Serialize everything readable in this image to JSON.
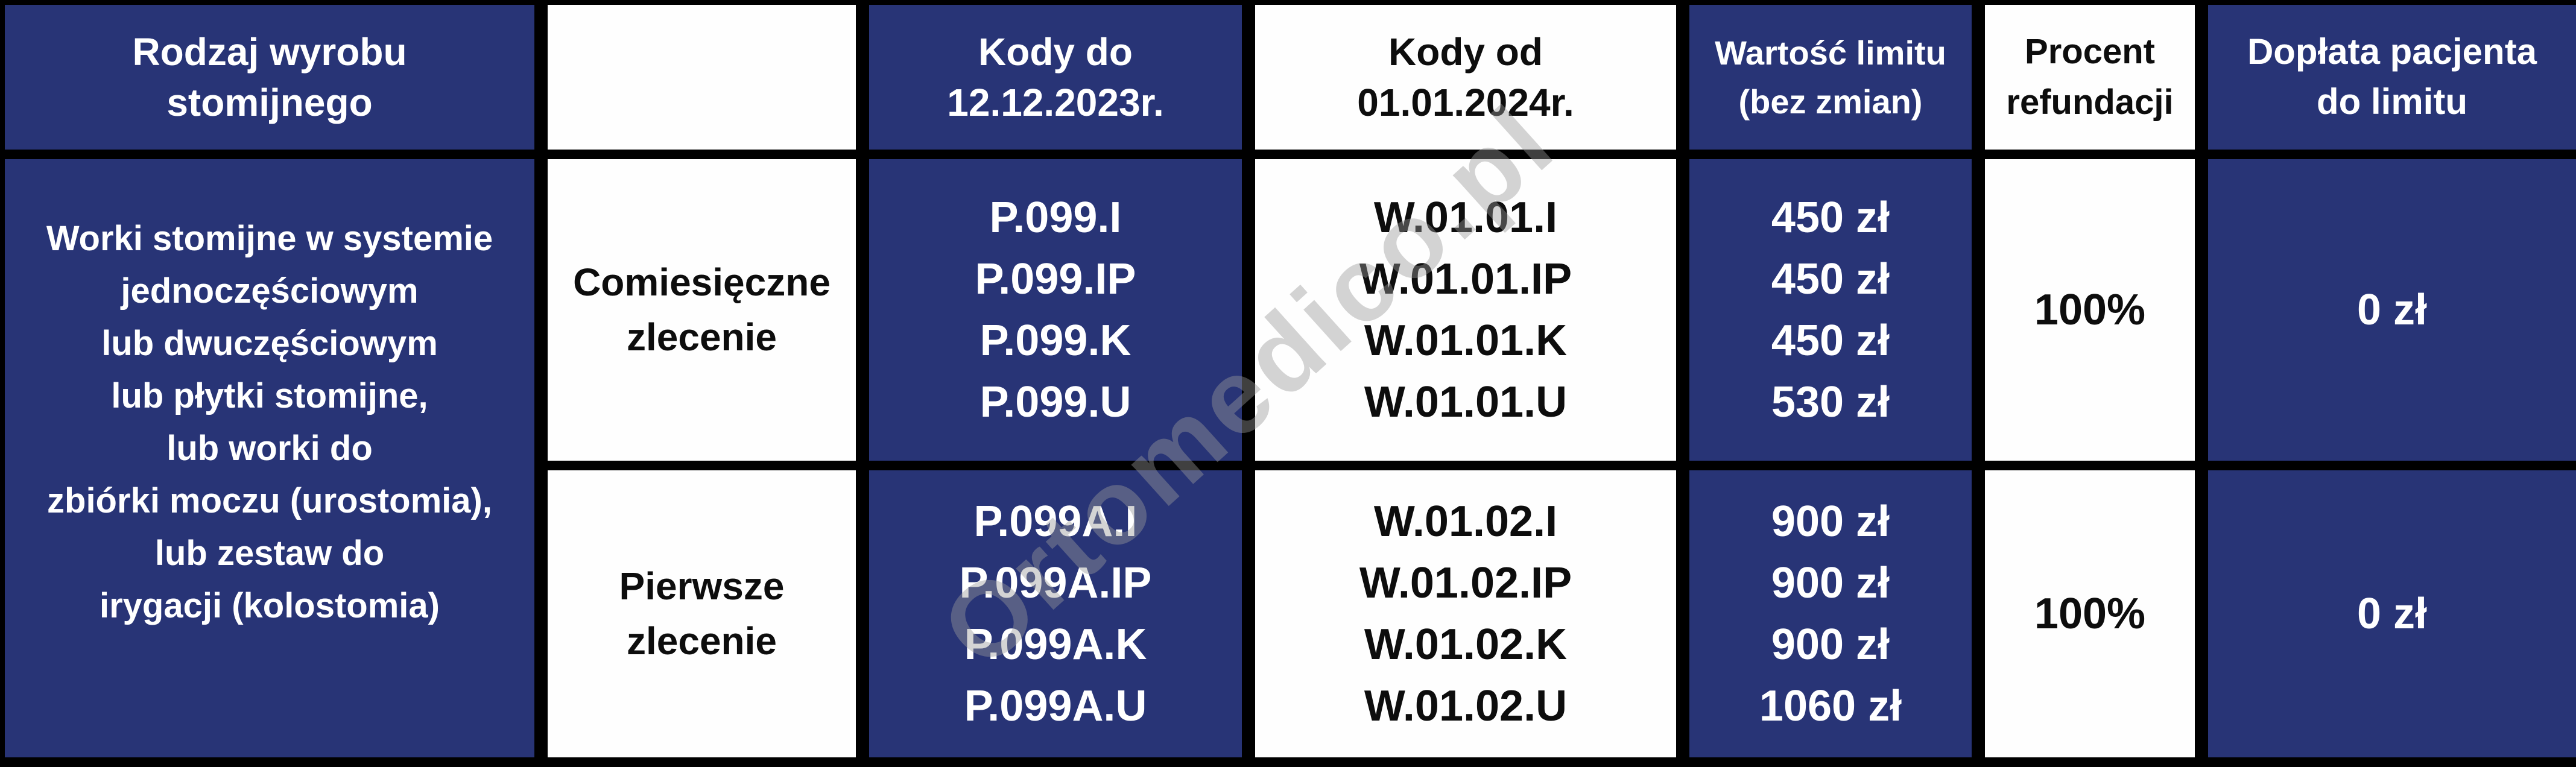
{
  "table": {
    "header": {
      "product_type": [
        "Rodzaj wyrobu",
        "stomijnego"
      ],
      "empty": "",
      "codes_until": [
        "Kody do",
        "12.12.2023r."
      ],
      "codes_from": [
        "Kody od",
        "01.01.2024r."
      ],
      "limit_value": [
        "Wartość limitu",
        "(bez zmian)"
      ],
      "refund_percent": [
        "Procent",
        "refundacji"
      ],
      "patient_copay": [
        "Dopłata pacjenta",
        "do limitu"
      ]
    },
    "product_category": [
      "Worki stomijne w systemie",
      "jednoczęściowym",
      "lub dwuczęściowym",
      "lub płytki stomijne,",
      "lub worki do",
      "zbiórki moczu (urostomia),",
      "lub zestaw do",
      "irygacji (kolostomia)"
    ],
    "rows": [
      {
        "order_type": [
          "Comiesięczne",
          "zlecenie"
        ],
        "codes_old": [
          "P.099.I",
          "P.099.IP",
          "P.099.K",
          "P.099.U"
        ],
        "codes_new": [
          "W.01.01.I",
          "W.01.01.IP",
          "W.01.01.K",
          "W.01.01.U"
        ],
        "limit_values": [
          "450 zł",
          "450 zł",
          "450 zł",
          "530 zł"
        ],
        "refund_percent": "100%",
        "patient_copay": "0 zł"
      },
      {
        "order_type": [
          "Pierwsze",
          "zlecenie"
        ],
        "codes_old": [
          "P.099A.I",
          "P.099A.IP",
          "P.099A.K",
          "P.099A.U"
        ],
        "codes_new": [
          "W.01.02.I",
          "W.01.02.IP",
          "W.01.02.K",
          "W.01.02.U"
        ],
        "limit_values": [
          "900 zł",
          "900 zł",
          "900 zł",
          "1060 zł"
        ],
        "refund_percent": "100%",
        "patient_copay": "0 zł"
      }
    ]
  },
  "watermark": "Ortomedico.pl",
  "colors": {
    "navy": "#283476",
    "border_black": "#000000",
    "cell_white": "#fefefe",
    "text_white": "#ffffff",
    "text_black": "#0d0d0d",
    "watermark_gray": "#9a9a9a"
  }
}
